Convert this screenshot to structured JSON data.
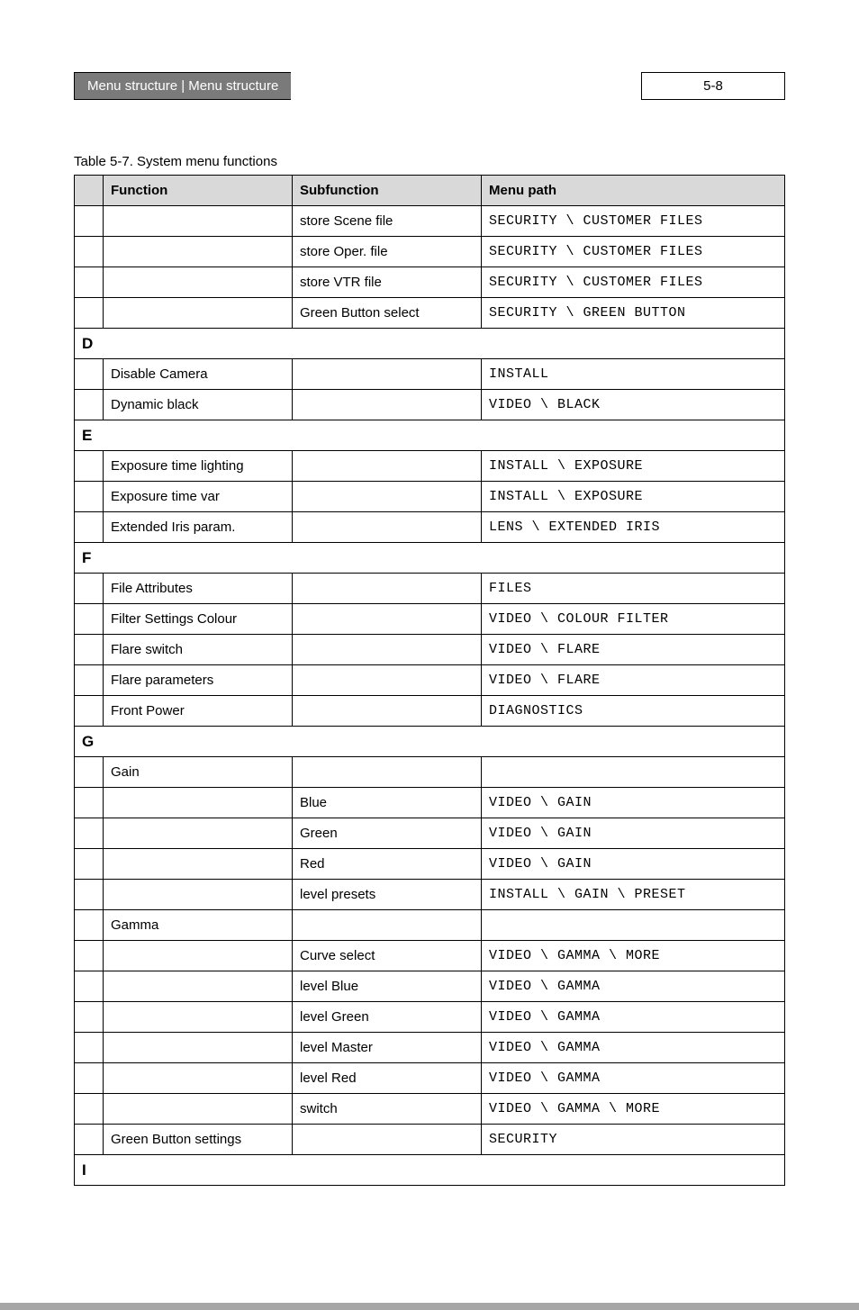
{
  "header": {
    "breadcrumb": "Menu structure | Menu structure",
    "page_number": "5-8"
  },
  "caption": "Table 5-7.  System menu functions",
  "columns": {
    "function": "Function",
    "subfunction": "Subfunction",
    "menu_path": "Menu path"
  },
  "rows": [
    {
      "type": "data",
      "function": "",
      "subfunction": "store Scene file",
      "path": "SECURITY \\ CUSTOMER FILES"
    },
    {
      "type": "data",
      "function": "",
      "subfunction": "store Oper. file",
      "path": "SECURITY \\ CUSTOMER FILES"
    },
    {
      "type": "data",
      "function": "",
      "subfunction": "store VTR file",
      "path": "SECURITY \\ CUSTOMER FILES"
    },
    {
      "type": "data",
      "function": "",
      "subfunction": "Green Button select",
      "path": "SECURITY \\ GREEN BUTTON"
    },
    {
      "type": "letter",
      "letter": "D"
    },
    {
      "type": "data",
      "function": "Disable Camera",
      "subfunction": "",
      "path": "INSTALL"
    },
    {
      "type": "data",
      "function": "Dynamic black",
      "subfunction": "",
      "path": "VIDEO \\ BLACK"
    },
    {
      "type": "letter",
      "letter": "E"
    },
    {
      "type": "data",
      "function": "Exposure time lighting",
      "subfunction": "",
      "path": "INSTALL \\ EXPOSURE"
    },
    {
      "type": "data",
      "function": "Exposure time var",
      "subfunction": "",
      "path": "INSTALL \\ EXPOSURE"
    },
    {
      "type": "data",
      "function": "Extended Iris param.",
      "subfunction": "",
      "path": "LENS \\ EXTENDED IRIS"
    },
    {
      "type": "letter",
      "letter": "F"
    },
    {
      "type": "data",
      "function": "File Attributes",
      "subfunction": "",
      "path": "FILES"
    },
    {
      "type": "data",
      "function": "Filter Settings Colour",
      "subfunction": "",
      "path": "VIDEO \\ COLOUR FILTER"
    },
    {
      "type": "data",
      "function": "Flare switch",
      "subfunction": "",
      "path": "VIDEO \\ FLARE"
    },
    {
      "type": "data",
      "function": "Flare parameters",
      "subfunction": "",
      "path": "VIDEO \\ FLARE"
    },
    {
      "type": "data",
      "function": "Front Power",
      "subfunction": "",
      "path": "DIAGNOSTICS"
    },
    {
      "type": "letter",
      "letter": "G"
    },
    {
      "type": "data",
      "function": "Gain",
      "subfunction": "",
      "path": ""
    },
    {
      "type": "data",
      "function": "",
      "subfunction": "Blue",
      "path": "VIDEO \\ GAIN"
    },
    {
      "type": "data",
      "function": "",
      "subfunction": "Green",
      "path": "VIDEO \\ GAIN"
    },
    {
      "type": "data",
      "function": "",
      "subfunction": "Red",
      "path": "VIDEO \\ GAIN"
    },
    {
      "type": "data",
      "function": "",
      "subfunction": "level presets",
      "path": "INSTALL \\ GAIN \\ PRESET"
    },
    {
      "type": "data",
      "function": "Gamma",
      "subfunction": "",
      "path": ""
    },
    {
      "type": "data",
      "function": "",
      "subfunction": "Curve select",
      "path": "VIDEO \\ GAMMA \\ MORE"
    },
    {
      "type": "data",
      "function": "",
      "subfunction": "level Blue",
      "path": "VIDEO \\ GAMMA"
    },
    {
      "type": "data",
      "function": "",
      "subfunction": "level Green",
      "path": "VIDEO \\ GAMMA"
    },
    {
      "type": "data",
      "function": "",
      "subfunction": "level Master",
      "path": "VIDEO \\ GAMMA"
    },
    {
      "type": "data",
      "function": "",
      "subfunction": "level Red",
      "path": "VIDEO \\ GAMMA"
    },
    {
      "type": "data",
      "function": "",
      "subfunction": "switch",
      "path": "VIDEO \\ GAMMA \\ MORE"
    },
    {
      "type": "data",
      "function": "Green Button settings",
      "subfunction": "",
      "path": "SECURITY"
    },
    {
      "type": "letter",
      "letter": "I"
    }
  ]
}
